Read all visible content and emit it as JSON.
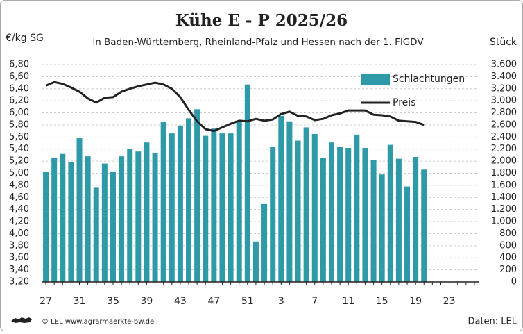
{
  "chart_data": {
    "type": "bar",
    "title": "Kühe E - P 2025/26",
    "subtitle": "in Baden-Württemberg, Rheinland-Pfalz und Hessen nach der 1. FlGDV",
    "y_label": "€/kg SG",
    "y2_label": "Stück",
    "source_left": "© LEL www.agrarmaerkte-bw.de",
    "source_right": "Daten: LEL",
    "legend": "upper right",
    "grid": true,
    "categories": [
      "27",
      null,
      null,
      null,
      "31",
      null,
      null,
      null,
      "35",
      null,
      null,
      null,
      "39",
      null,
      null,
      null,
      "43",
      null,
      null,
      null,
      "47",
      null,
      null,
      null,
      "51",
      null,
      null,
      null,
      "3",
      null,
      null,
      null,
      "7",
      null,
      null,
      null,
      "11",
      null,
      null,
      null,
      "15",
      null,
      null,
      null,
      "19",
      null,
      null,
      null,
      "23",
      null,
      null,
      null
    ],
    "series": [
      {
        "name": "Schlachtungen",
        "type": "bar",
        "axis": "y2",
        "color": "#2e9aa8",
        "values": [
          1820,
          2060,
          2120,
          1980,
          2380,
          2080,
          1560,
          1960,
          1830,
          2080,
          2200,
          2160,
          2310,
          2130,
          2650,
          2460,
          2590,
          2710,
          2860,
          2420,
          2540,
          2460,
          2460,
          2660,
          3270,
          670,
          1290,
          2240,
          2750,
          2660,
          2340,
          2560,
          2450,
          2050,
          2310,
          2240,
          2220,
          2440,
          2220,
          2020,
          1780,
          2270,
          2040,
          1580,
          2070,
          1860,
          null,
          null,
          null,
          null,
          null,
          null
        ]
      },
      {
        "name": "Preis",
        "type": "line",
        "axis": "y",
        "color": "#222222",
        "values": [
          6.45,
          6.51,
          6.48,
          6.42,
          6.35,
          6.24,
          6.17,
          6.25,
          6.26,
          6.35,
          6.4,
          6.44,
          6.47,
          6.5,
          6.47,
          6.4,
          6.26,
          6.05,
          5.86,
          5.73,
          5.7,
          5.76,
          5.82,
          5.87,
          5.86,
          5.9,
          5.87,
          5.89,
          5.98,
          6.02,
          5.95,
          5.94,
          5.88,
          5.9,
          5.96,
          5.99,
          6.04,
          6.04,
          6.04,
          5.97,
          5.96,
          5.94,
          5.87,
          5.86,
          5.85,
          5.8,
          null,
          null,
          null,
          null,
          null,
          null
        ]
      }
    ],
    "ylim": [
      3.2,
      6.8
    ],
    "yticks": [
      {
        "value": 3.2,
        "label": "3,20"
      },
      {
        "value": 3.4,
        "label": "3,40"
      },
      {
        "value": 3.6,
        "label": "3,60"
      },
      {
        "value": 3.8,
        "label": "3,80"
      },
      {
        "value": 4.0,
        "label": "4,00"
      },
      {
        "value": 4.2,
        "label": "4,20"
      },
      {
        "value": 4.4,
        "label": "4,40"
      },
      {
        "value": 4.6,
        "label": "4,60"
      },
      {
        "value": 4.8,
        "label": "4,80"
      },
      {
        "value": 5.0,
        "label": "5,00"
      },
      {
        "value": 5.2,
        "label": "5,20"
      },
      {
        "value": 5.4,
        "label": "5,40"
      },
      {
        "value": 5.6,
        "label": "5,60"
      },
      {
        "value": 5.8,
        "label": "5,80"
      },
      {
        "value": 6.0,
        "label": "6,00"
      },
      {
        "value": 6.2,
        "label": "6,20"
      },
      {
        "value": 6.4,
        "label": "6,40"
      },
      {
        "value": 6.6,
        "label": "6,60"
      },
      {
        "value": 6.8,
        "label": "6,80"
      }
    ],
    "y2lim": [
      0,
      3600
    ],
    "y2ticks": [
      0,
      200,
      400,
      600,
      800,
      {
        "value": 1000,
        "label": "1.000"
      },
      {
        "value": 1200,
        "label": "1.200"
      },
      {
        "value": 1400,
        "label": "1.400"
      },
      {
        "value": 1600,
        "label": "1.600"
      },
      {
        "value": 1800,
        "label": "1.800"
      },
      {
        "value": 2000,
        "label": "2.000"
      },
      {
        "value": 2200,
        "label": "2.200"
      },
      {
        "value": 2400,
        "label": "2.400"
      },
      {
        "value": 2600,
        "label": "2.600"
      },
      {
        "value": 2800,
        "label": "2.800"
      },
      {
        "value": 3000,
        "label": "3.000"
      },
      {
        "value": 3200,
        "label": "3.200"
      },
      {
        "value": 3400,
        "label": "3.400"
      },
      {
        "value": 3600,
        "label": "3.600"
      }
    ]
  }
}
